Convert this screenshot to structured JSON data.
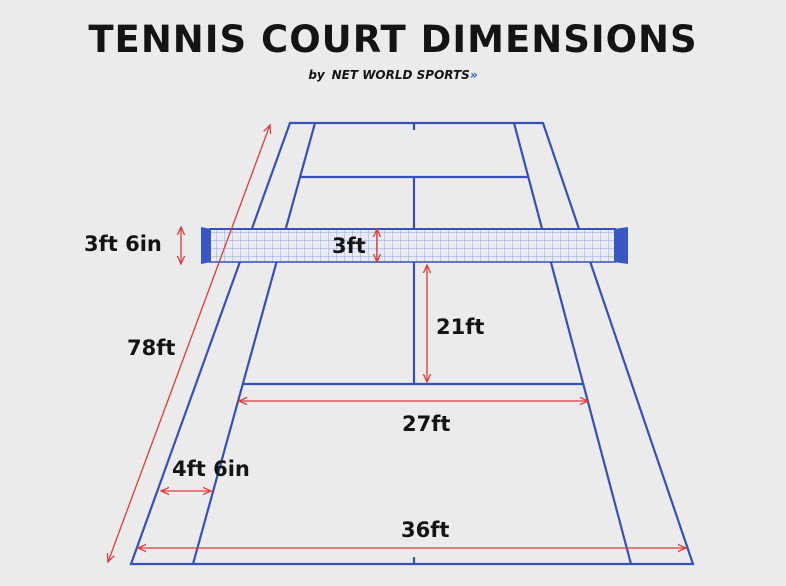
{
  "header": {
    "title": "TENNIS COURT DIMENSIONS",
    "byline_prefix": "by",
    "brand": "NET WORLD SPORTS",
    "brand_mark": "»"
  },
  "diagram": {
    "labels": {
      "net_post_height": "3ft 6in",
      "net_center_height": "3ft",
      "court_length": "78ft",
      "service_line_distance": "21ft",
      "singles_width": "27ft",
      "alley_width": "4ft 6in",
      "doubles_width": "36ft"
    },
    "colors": {
      "court_line": "#3551b8",
      "measure_line": "#e03a3a",
      "net_post": "#3a56c4",
      "net_mesh": "#7a8fd0",
      "text": "#141414",
      "background": "#ebebeb"
    }
  }
}
